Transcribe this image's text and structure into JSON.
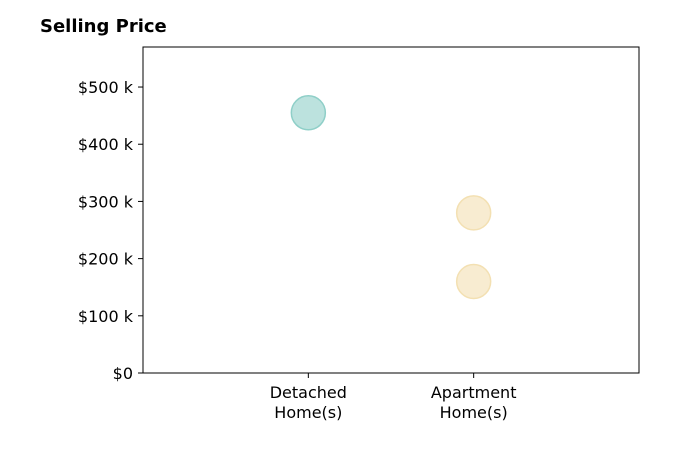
{
  "chart_data": {
    "type": "scatter",
    "title": "Selling Price",
    "xlabel": "",
    "ylabel": "",
    "categories": [
      "Detached\nHome(s)",
      "Apartment\nHome(s)"
    ],
    "xlim": [
      -1,
      2
    ],
    "ylim": [
      0,
      570000
    ],
    "yticks": [
      0,
      100000,
      200000,
      300000,
      400000,
      500000
    ],
    "ytick_labels": [
      "$0",
      "$100 k",
      "$200 k",
      "$300 k",
      "$400 k",
      "$500 k"
    ],
    "grid": false,
    "colors": {
      "Detached": "#8fcfc8",
      "Apartment": "#f3e0b2"
    },
    "points": [
      {
        "category": "Detached\nHome(s)",
        "value": 455000,
        "color": "#8fcfc8"
      },
      {
        "category": "Apartment\nHome(s)",
        "value": 280000,
        "color": "#f3e0b2"
      },
      {
        "category": "Apartment\nHome(s)",
        "value": 160000,
        "color": "#f3e0b2"
      }
    ]
  }
}
